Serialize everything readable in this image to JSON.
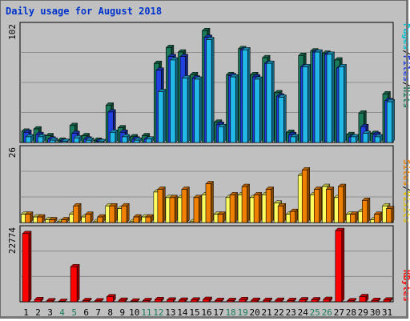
{
  "title": "Daily usage for August 2018",
  "colors": {
    "pages": "#22b8e8",
    "files": "#2040e0",
    "hits": "#1a7a5a",
    "sites": "#f08000",
    "visits": "#ffff60",
    "kbytes": "#ff0000",
    "weekend_day": "#1a7a5a",
    "weekday": "#000000"
  },
  "legend": {
    "top": [
      {
        "text": "Pages",
        "color": "#00c0d0"
      },
      {
        "text": "/",
        "color": "#000000"
      },
      {
        "text": "Files",
        "color": "#2040e0"
      },
      {
        "text": "/",
        "color": "#000000"
      },
      {
        "text": "Hits",
        "color": "#1a7a5a"
      }
    ],
    "middle": [
      {
        "text": "Sites",
        "color": "#f08000"
      },
      {
        "text": "/",
        "color": "#000000"
      },
      {
        "text": "Visits",
        "color": "#e0c000"
      }
    ],
    "bottom": [
      {
        "text": "KBytes",
        "color": "#ff0000"
      }
    ]
  },
  "chart_data": [
    {
      "type": "bar",
      "name": "hits-files-pages",
      "ymax_label": "102",
      "ylim": [
        0,
        102
      ],
      "x": [
        "1",
        "2",
        "3",
        "4",
        "5",
        "6",
        "7",
        "8",
        "9",
        "10",
        "11",
        "12",
        "13",
        "14",
        "15",
        "16",
        "17",
        "18",
        "19",
        "20",
        "21",
        "22",
        "23",
        "24",
        "25",
        "26",
        "27",
        "28",
        "29",
        "30",
        "31"
      ],
      "series": [
        {
          "name": "Hits",
          "values": [
            10,
            12,
            6,
            2,
            15,
            6,
            2,
            33,
            13,
            5,
            6,
            70,
            84,
            80,
            60,
            99,
            18,
            60,
            83,
            60,
            75,
            44,
            9,
            77,
            81,
            79,
            73,
            7,
            26,
            8,
            43
          ]
        },
        {
          "name": "Files",
          "values": [
            9,
            7,
            3,
            1,
            8,
            3,
            1,
            27,
            9,
            3,
            3,
            64,
            76,
            76,
            57,
            93,
            16,
            59,
            82,
            58,
            70,
            41,
            7,
            67,
            80,
            78,
            66,
            5,
            14,
            7,
            37
          ]
        },
        {
          "name": "Pages",
          "values": [
            5,
            5,
            2,
            1,
            4,
            2,
            0,
            9,
            5,
            2,
            3,
            45,
            73,
            57,
            56,
            91,
            14,
            58,
            82,
            56,
            70,
            40,
            5,
            67,
            80,
            78,
            67,
            5,
            8,
            5,
            36
          ]
        }
      ]
    },
    {
      "type": "bar",
      "name": "visits-sites",
      "ymax_label": "26",
      "ylim": [
        0,
        26
      ],
      "x": [
        "1",
        "2",
        "3",
        "4",
        "5",
        "6",
        "7",
        "8",
        "9",
        "10",
        "11",
        "12",
        "13",
        "14",
        "15",
        "16",
        "17",
        "18",
        "19",
        "20",
        "21",
        "22",
        "23",
        "24",
        "25",
        "26",
        "27",
        "28",
        "29",
        "30",
        "31"
      ],
      "series": [
        {
          "name": "Visits",
          "values": [
            3,
            2,
            1,
            0,
            3,
            2,
            0,
            6,
            5,
            0,
            2,
            11,
            9,
            9,
            0,
            10,
            3,
            9,
            10,
            9,
            10,
            7,
            3,
            17,
            10,
            13,
            9,
            3,
            4,
            1,
            6
          ]
        },
        {
          "name": "Sites",
          "values": [
            3,
            2,
            1,
            1,
            6,
            3,
            2,
            6,
            6,
            2,
            2,
            12,
            9,
            12,
            9,
            14,
            3,
            10,
            13,
            10,
            12,
            6,
            4,
            19,
            12,
            12,
            13,
            3,
            8,
            3,
            5
          ]
        }
      ]
    },
    {
      "type": "bar",
      "name": "kbytes",
      "ymax_label": "22774",
      "ylim": [
        0,
        22774
      ],
      "x": [
        "1",
        "2",
        "3",
        "4",
        "5",
        "6",
        "7",
        "8",
        "9",
        "10",
        "11",
        "12",
        "13",
        "14",
        "15",
        "16",
        "17",
        "18",
        "19",
        "20",
        "21",
        "22",
        "23",
        "24",
        "25",
        "26",
        "27",
        "28",
        "29",
        "30",
        "31"
      ],
      "series": [
        {
          "name": "KBytes",
          "values": [
            21800,
            690,
            300,
            120,
            11200,
            380,
            290,
            1600,
            490,
            230,
            380,
            700,
            560,
            510,
            560,
            770,
            420,
            410,
            690,
            470,
            460,
            480,
            410,
            640,
            640,
            770,
            22774,
            320,
            1660,
            440,
            560
          ]
        }
      ]
    }
  ],
  "weekend_days": [
    "4",
    "5",
    "11",
    "12",
    "18",
    "19",
    "25",
    "26"
  ]
}
